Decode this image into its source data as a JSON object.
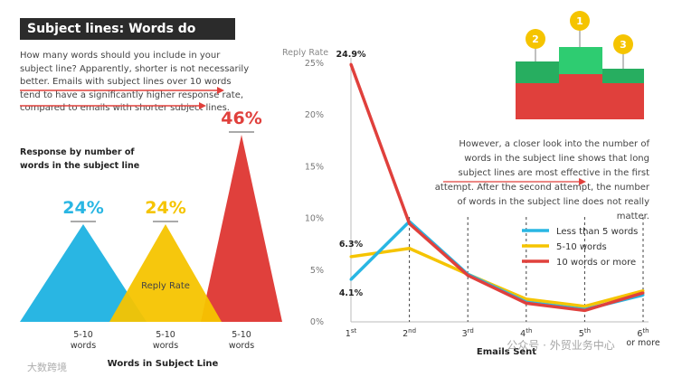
{
  "title": "Subject lines: Words do come easy",
  "intro_text": "How many words should you include in your subject line? Apparently, shorter is not necessarily better. Emails with subject lines over 10 words tend to have a significantly higher response rate, compared to emails with shorter subject lines.",
  "right_text": "However, a closer look into the number of words in the subject line shows that long subject lines are most effective in the first attempt. After the second attempt, the number of words in the subject line does not really matter.",
  "podium_numbers": [
    "2",
    "1",
    "3"
  ],
  "watermark_left": "大数跨境",
  "watermark_right": "公众号 · 外贸业务中心",
  "colors": {
    "blue": "#29b6e3",
    "yellow": "#f5c400",
    "red": "#e0403c",
    "green": "#27ae60",
    "dark": "#2b2b2b"
  },
  "chart_data": [
    {
      "type": "bar",
      "style": "triangle",
      "title": "Response by number of words in the subject line",
      "xlabel": "Words in Subject Line",
      "inner_label": "Reply Rate",
      "categories": [
        "Less than 5 words",
        "5-10 words",
        "10 words or more"
      ],
      "values": [
        24,
        24,
        46
      ],
      "value_labels": [
        "24%",
        "24%",
        "46%"
      ],
      "colors": [
        "#29b6e3",
        "#f5c400",
        "#e0403c"
      ]
    },
    {
      "type": "line",
      "ylabel": "Reply Rate",
      "xlabel": "Emails Sent",
      "ylim": [
        0,
        25
      ],
      "yticks": [
        "0%",
        "5%",
        "10%",
        "15%",
        "20%",
        "25%"
      ],
      "x": [
        "1st",
        "2nd",
        "3rd",
        "4th",
        "5th",
        "6th or more"
      ],
      "series": [
        {
          "name": "Less than 5 words",
          "color": "#29b6e3",
          "values": [
            4.1,
            9.7,
            4.6,
            1.9,
            1.2,
            2.6
          ]
        },
        {
          "name": "5-10 words",
          "color": "#f5c400",
          "values": [
            6.3,
            7.1,
            4.6,
            2.2,
            1.5,
            3.0
          ]
        },
        {
          "name": "10 words or more",
          "color": "#e0403c",
          "values": [
            24.9,
            9.5,
            4.5,
            1.8,
            1.1,
            2.8
          ]
        }
      ],
      "annotations": [
        "24.9%",
        "6.3%",
        "4.1%"
      ]
    }
  ]
}
